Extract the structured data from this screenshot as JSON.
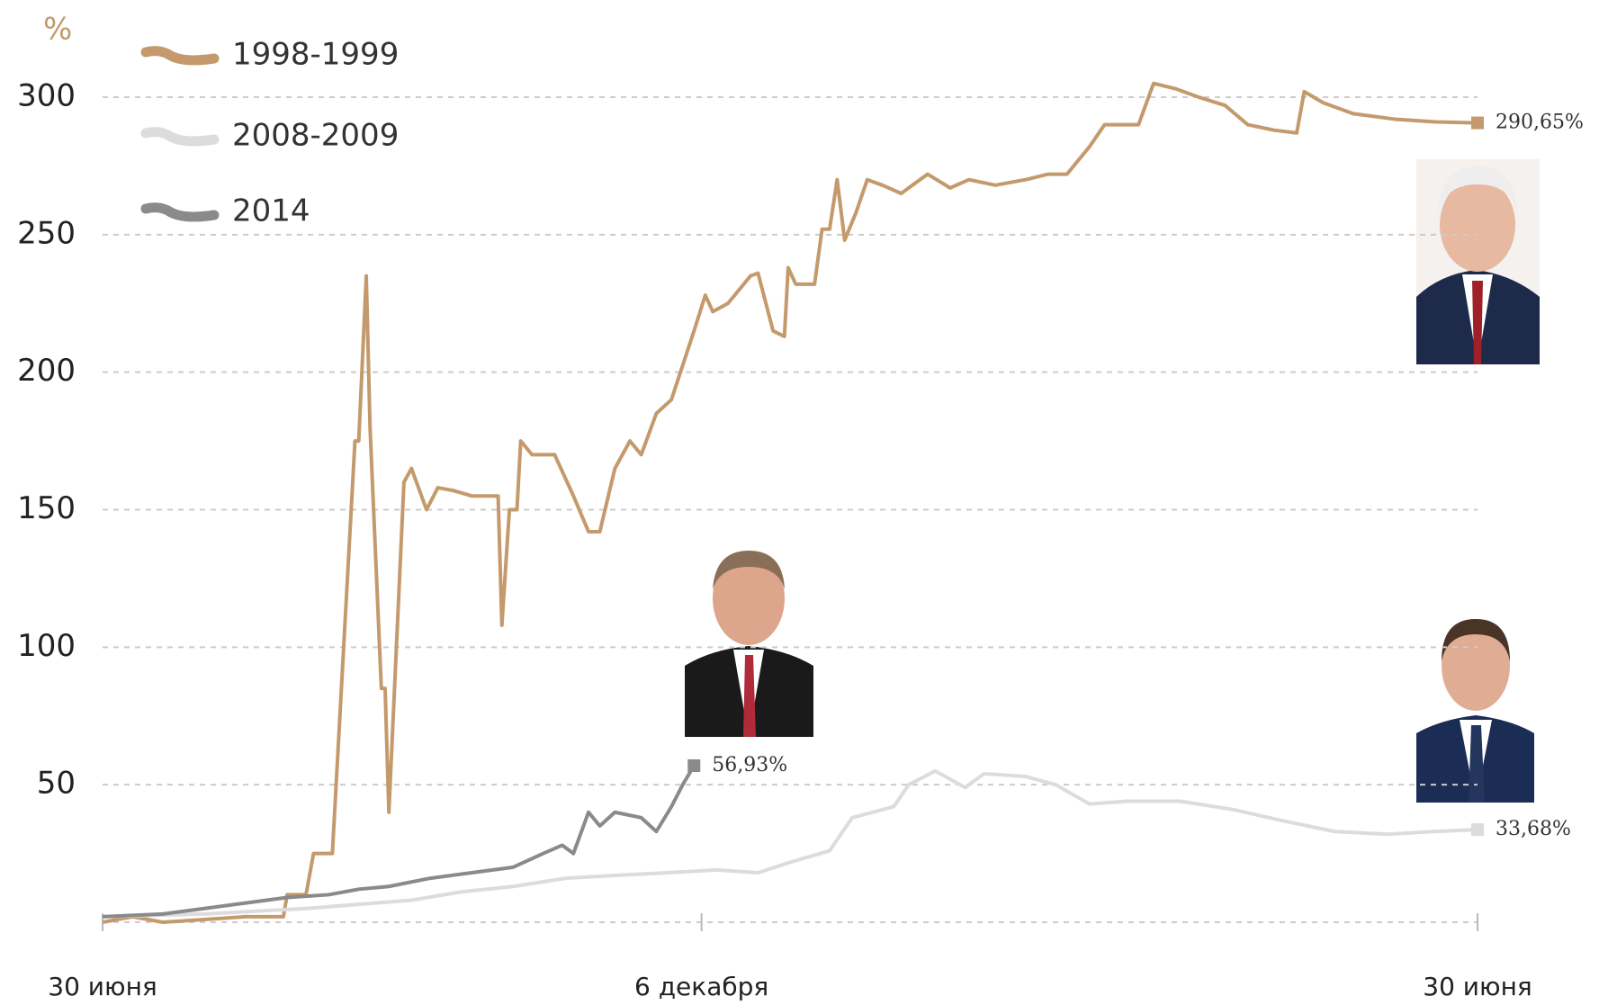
{
  "chart_data": {
    "type": "line",
    "ylabel": "%",
    "ylim": [
      0,
      300
    ],
    "yticks": [
      50,
      100,
      150,
      200,
      250,
      300
    ],
    "xlim": [
      0,
      365
    ],
    "xticks": [
      {
        "value": 0,
        "label": "30 июня"
      },
      {
        "value": 159,
        "label": "6 декабря"
      },
      {
        "value": 365,
        "label": "30 июня"
      }
    ],
    "grid": true,
    "legend": "top-left",
    "series": [
      {
        "name": "1998-1999",
        "color": "#c49a6c",
        "end_label": "290,65%",
        "x": [
          0,
          8,
          16,
          27,
          38,
          48,
          49,
          54,
          56,
          61,
          64,
          67,
          68,
          70,
          71,
          74,
          75,
          76,
          80,
          82,
          86,
          89,
          93,
          98,
          105,
          106,
          108,
          110,
          111,
          114,
          120,
          125,
          129,
          132,
          136,
          140,
          143,
          147,
          151,
          157,
          160,
          162,
          166,
          172,
          174,
          178,
          181,
          182,
          184,
          189,
          191,
          193,
          195,
          197,
          200,
          203,
          207,
          212,
          219,
          225,
          230,
          237,
          245,
          251,
          256,
          262,
          266,
          275,
          279,
          285,
          291,
          298,
          304,
          311,
          317,
          319,
          324,
          332,
          343,
          354,
          365
        ],
        "values": [
          0,
          2,
          0,
          1,
          2,
          2,
          10,
          10,
          25,
          25,
          100,
          175,
          175,
          235,
          180,
          85,
          85,
          40,
          160,
          165,
          150,
          158,
          157,
          155,
          155,
          108,
          150,
          150,
          175,
          170,
          170,
          155,
          142,
          142,
          165,
          175,
          170,
          185,
          190,
          215,
          228,
          222,
          225,
          235,
          236,
          215,
          213,
          238,
          232,
          232,
          252,
          252,
          270,
          248,
          258,
          270,
          268,
          265,
          272,
          267,
          270,
          268,
          270,
          272,
          272,
          282,
          290,
          290,
          305,
          303,
          300,
          297,
          290,
          288,
          287,
          302,
          298,
          294,
          292,
          291,
          290.65
        ]
      },
      {
        "name": "2008-2009",
        "color": "#dcdcdc",
        "end_label": "33,68%",
        "x": [
          0,
          27,
          54,
          82,
          95,
          109,
          123,
          136,
          150,
          163,
          174,
          183,
          193,
          199,
          210,
          214,
          221,
          229,
          234,
          245,
          253,
          262,
          272,
          286,
          300,
          313,
          327,
          341,
          354,
          365
        ],
        "values": [
          2,
          3,
          5,
          8,
          11,
          13,
          16,
          17,
          18,
          19,
          18,
          22,
          26,
          38,
          42,
          50,
          55,
          49,
          54,
          53,
          50,
          43,
          44,
          44,
          41,
          37,
          33,
          32,
          33,
          33.68
        ]
      },
      {
        "name": "2014",
        "color": "#8a8a8a",
        "end_label": "56,93%",
        "x": [
          0,
          16,
          27,
          38,
          49,
          60,
          68,
          76,
          87,
          98,
          109,
          117,
          122,
          125,
          129,
          132,
          136,
          143,
          147,
          151,
          154,
          157
        ],
        "values": [
          2,
          3,
          5,
          7,
          9,
          10,
          12,
          13,
          16,
          18,
          20,
          25,
          28,
          25,
          40,
          35,
          40,
          38,
          33,
          42,
          50,
          56.93
        ]
      }
    ]
  }
}
